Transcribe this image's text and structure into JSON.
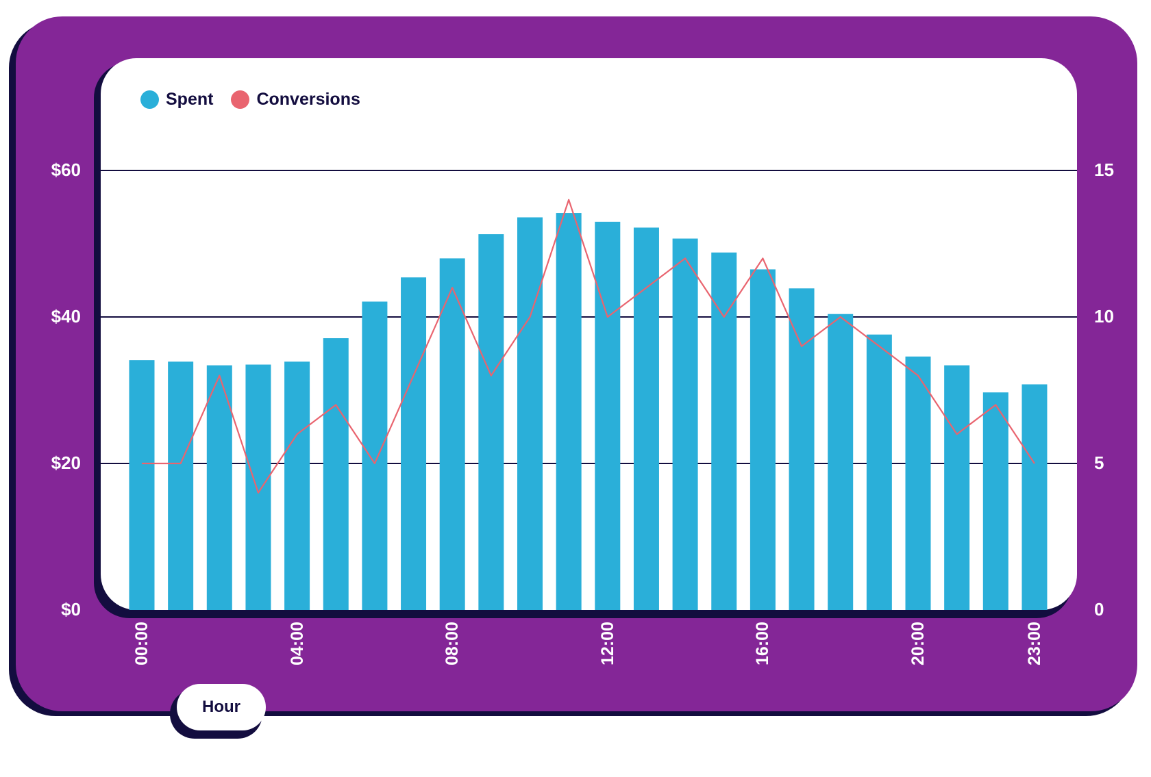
{
  "colors": {
    "card": "#842697",
    "outline": "#130d3f",
    "spent": "#2aafd9",
    "conversions": "#e9646f",
    "grid": "#130d3f"
  },
  "legend": [
    {
      "label": "Spent",
      "color": "#2aafd9"
    },
    {
      "label": "Conversions",
      "color": "#e9646f"
    }
  ],
  "xlabel": "Hour",
  "chart_data": {
    "type": "bar",
    "categories": [
      "00:00",
      "01:00",
      "02:00",
      "03:00",
      "04:00",
      "05:00",
      "06:00",
      "07:00",
      "08:00",
      "09:00",
      "10:00",
      "11:00",
      "12:00",
      "13:00",
      "14:00",
      "15:00",
      "16:00",
      "17:00",
      "18:00",
      "19:00",
      "20:00",
      "21:00",
      "22:00",
      "23:00"
    ],
    "x_tick_labels": [
      "00:00",
      "04:00",
      "08:00",
      "12:00",
      "16:00",
      "20:00",
      "23:00"
    ],
    "xlabel": "Hour",
    "y_left": {
      "ticks": [
        "$0",
        "$20",
        "$40",
        "$60"
      ],
      "tick_values": [
        0,
        20,
        40,
        60
      ],
      "ylim": [
        0,
        60
      ]
    },
    "y_right": {
      "ticks": [
        "0",
        "5",
        "10",
        "15"
      ],
      "tick_values": [
        0,
        5,
        10,
        15
      ],
      "ylim": [
        0,
        15
      ]
    },
    "grid": true,
    "legend_position": "top-left",
    "series": [
      {
        "name": "Spent",
        "type": "bar",
        "axis": "left",
        "values": [
          34.1,
          33.9,
          33.4,
          33.5,
          33.9,
          37.1,
          42.1,
          45.4,
          48.0,
          51.3,
          53.6,
          54.2,
          53.0,
          52.2,
          50.7,
          48.8,
          46.5,
          43.9,
          40.4,
          37.6,
          34.6,
          33.4,
          29.7,
          30.8
        ]
      },
      {
        "name": "Conversions",
        "type": "line",
        "axis": "right",
        "values": [
          5,
          5,
          8,
          4,
          6,
          7,
          5,
          8,
          11,
          8,
          10,
          14,
          10,
          11,
          12,
          10,
          12,
          9,
          10,
          9,
          8,
          6,
          7,
          5
        ]
      }
    ]
  }
}
